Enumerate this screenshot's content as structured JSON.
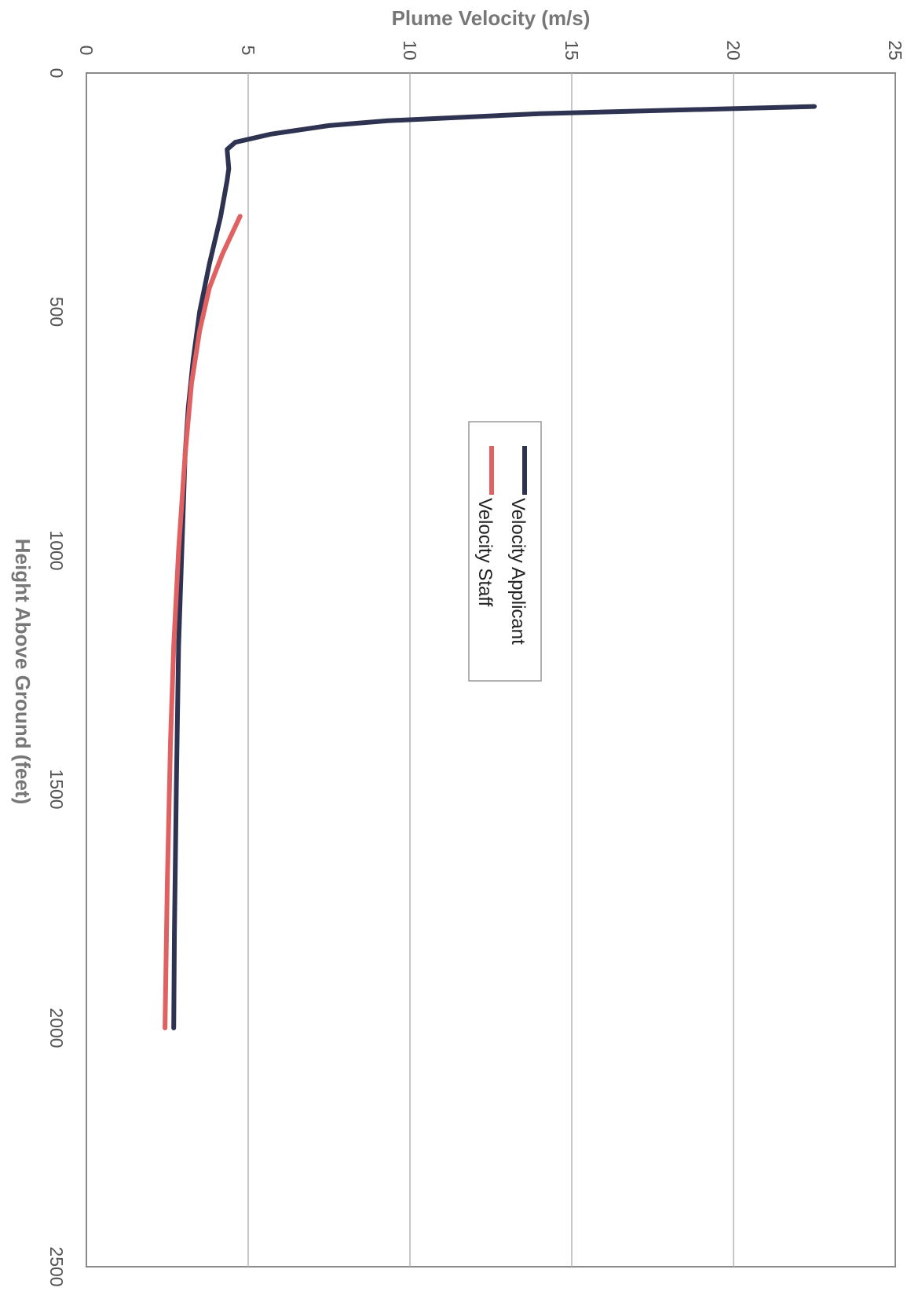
{
  "chart_data": {
    "type": "line",
    "orientation": "rotated-90",
    "xlabel": "Plume Velocity (m/s)",
    "ylabel": "Height Above Ground (feet)",
    "xlim": [
      0,
      25
    ],
    "ylim": [
      0,
      2500
    ],
    "x_ticks": [
      0,
      5,
      10,
      15,
      20,
      25
    ],
    "y_ticks": [
      0,
      500,
      1000,
      1500,
      2000,
      2500
    ],
    "grid": "vertical lines at velocity ticks",
    "legend_position": "center",
    "series": [
      {
        "name": "Velocity Applicant",
        "color": "#2f3352",
        "points": [
          {
            "v": 22.5,
            "h": 70
          },
          {
            "v": 14,
            "h": 85
          },
          {
            "v": 9.3,
            "h": 100
          },
          {
            "v": 7.5,
            "h": 110
          },
          {
            "v": 5.7,
            "h": 128
          },
          {
            "v": 4.6,
            "h": 145
          },
          {
            "v": 4.35,
            "h": 160
          },
          {
            "v": 4.4,
            "h": 200
          },
          {
            "v": 4.35,
            "h": 225
          },
          {
            "v": 4.15,
            "h": 300
          },
          {
            "v": 3.8,
            "h": 400
          },
          {
            "v": 3.5,
            "h": 500
          },
          {
            "v": 3.3,
            "h": 600
          },
          {
            "v": 3.15,
            "h": 700
          },
          {
            "v": 3.05,
            "h": 800
          },
          {
            "v": 2.95,
            "h": 1000
          },
          {
            "v": 2.85,
            "h": 1200
          },
          {
            "v": 2.78,
            "h": 1500
          },
          {
            "v": 2.72,
            "h": 1800
          },
          {
            "v": 2.7,
            "h": 2000
          }
        ]
      },
      {
        "name": "Velocity Staff",
        "color": "#e06161",
        "points": [
          {
            "v": 4.75,
            "h": 300
          },
          {
            "v": 4.2,
            "h": 380
          },
          {
            "v": 3.8,
            "h": 450
          },
          {
            "v": 3.5,
            "h": 540
          },
          {
            "v": 3.25,
            "h": 650
          },
          {
            "v": 3.05,
            "h": 800
          },
          {
            "v": 2.85,
            "h": 1000
          },
          {
            "v": 2.7,
            "h": 1200
          },
          {
            "v": 2.6,
            "h": 1400
          },
          {
            "v": 2.5,
            "h": 1700
          },
          {
            "v": 2.43,
            "h": 2000
          }
        ]
      }
    ]
  }
}
